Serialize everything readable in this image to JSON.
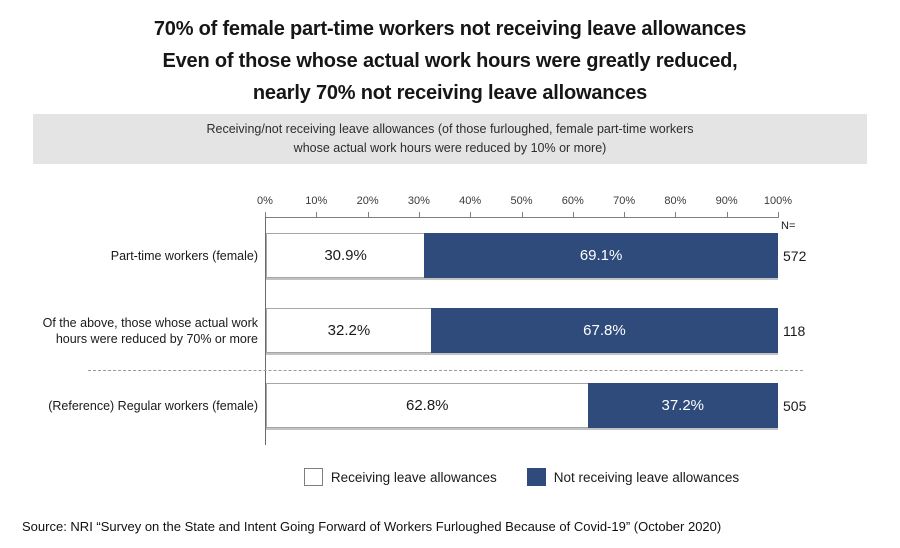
{
  "title": {
    "line1": "70% of female part-time workers not receiving leave allowances",
    "line2": "Even of those whose actual work hours were greatly reduced,",
    "line3": "nearly 70% not receiving leave allowances"
  },
  "subtitle": {
    "line1": "Receiving/not receiving leave allowances (of those furloughed, female part-time workers",
    "line2": "whose actual work hours were reduced by 10% or more)"
  },
  "axis": {
    "n_header": "N="
  },
  "chart_data": {
    "type": "bar",
    "orientation": "horizontal",
    "stacked": true,
    "categories": [
      "Part-time workers (female)",
      "Of the above, those whose actual work hours were reduced by 70% or more",
      "(Reference) Regular workers (female)"
    ],
    "series": [
      {
        "name": "Receiving leave allowances",
        "color": "#ffffff",
        "values": [
          30.9,
          32.2,
          62.8
        ]
      },
      {
        "name": "Not receiving leave allowances",
        "color": "#2e4b7b",
        "values": [
          69.1,
          67.8,
          37.2
        ]
      }
    ],
    "value_labels": [
      [
        "30.9%",
        "69.1%"
      ],
      [
        "32.2%",
        "67.8%"
      ],
      [
        "62.8%",
        "37.2%"
      ]
    ],
    "n_values": [
      "572",
      "118",
      "505"
    ],
    "xlim": [
      0,
      100
    ],
    "x_ticks": [
      "0%",
      "10%",
      "20%",
      "30%",
      "40%",
      "50%",
      "60%",
      "70%",
      "80%",
      "90%",
      "100%"
    ],
    "separator": "dashed line between row 2 and row 3",
    "legend_position": "bottom",
    "grid": false
  },
  "legend": {
    "items": [
      {
        "label": "Receiving leave allowances",
        "color": "#ffffff"
      },
      {
        "label": "Not receiving leave allowances",
        "color": "#2e4b7b"
      }
    ]
  },
  "source": "Source: NRI “Survey on the State and Intent Going Forward of Workers Furloughed Because of Covid-19” (October 2020)",
  "colors": {
    "navy": "#2e4b7b",
    "subtitle_band": "#e4e4e4",
    "axis_gray": "#7f7f7f",
    "bar_border": "#a6a6a6"
  }
}
